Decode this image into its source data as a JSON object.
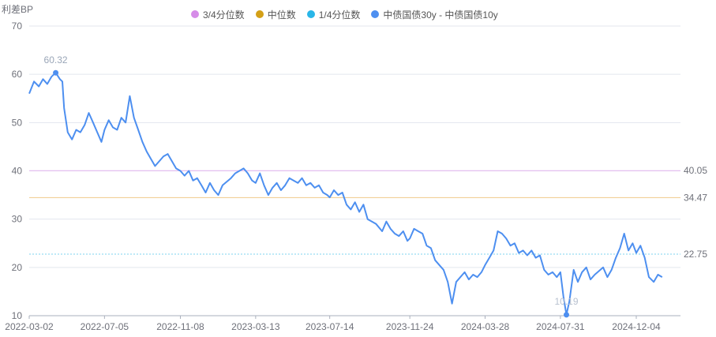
{
  "chart_data": {
    "type": "line",
    "title": "",
    "ylabel": "利差BP",
    "xlabel": "",
    "ylim": [
      10,
      70
    ],
    "yticks": [
      "10",
      "20",
      "30",
      "40",
      "50",
      "60",
      "70"
    ],
    "x_ticks": [
      "2022-03-02",
      "2022-07-05",
      "2022-11-08",
      "2023-03-13",
      "2023-07-14",
      "2023-11-24",
      "2024-03-28",
      "2024-07-31",
      "2024-12-04"
    ],
    "legend_position": "top",
    "grid": true,
    "legend": [
      {
        "name": "3/4分位数",
        "color": "#d68ce8"
      },
      {
        "name": "中位数",
        "color": "#d4a017"
      },
      {
        "name": "1/4分位数",
        "color": "#29b6e8"
      },
      {
        "name": "中债国债30y - 中债国债10y",
        "color": "#4d8ff0"
      }
    ],
    "reference_lines": [
      {
        "name": "3/4分位数",
        "value": 40.05,
        "label": "40.05",
        "color": "#e2b4ef"
      },
      {
        "name": "中位数",
        "value": 34.47,
        "label": "34.47",
        "color": "#f0c98a"
      },
      {
        "name": "1/4分位数",
        "value": 22.75,
        "label": "22.75",
        "color": "#7fd3ef"
      }
    ],
    "annotations": [
      {
        "label": "60.32",
        "date": "2022-04-15",
        "value": 60.32
      },
      {
        "label": "10.19",
        "date": "2024-08-10",
        "value": 10.19
      }
    ],
    "series": [
      {
        "name": "中债国债30y - 中债国债10y",
        "color": "#4d8ff0",
        "points": [
          [
            "2022-03-02",
            56.0
          ],
          [
            "2022-03-10",
            58.5
          ],
          [
            "2022-03-18",
            57.5
          ],
          [
            "2022-03-25",
            59.0
          ],
          [
            "2022-04-01",
            58.0
          ],
          [
            "2022-04-08",
            59.5
          ],
          [
            "2022-04-15",
            60.32
          ],
          [
            "2022-04-22",
            59.0
          ],
          [
            "2022-04-26",
            58.5
          ],
          [
            "2022-04-29",
            53.0
          ],
          [
            "2022-05-05",
            48.0
          ],
          [
            "2022-05-12",
            46.5
          ],
          [
            "2022-05-19",
            48.5
          ],
          [
            "2022-05-26",
            48.0
          ],
          [
            "2022-06-02",
            49.5
          ],
          [
            "2022-06-09",
            52.0
          ],
          [
            "2022-06-16",
            50.0
          ],
          [
            "2022-06-23",
            48.0
          ],
          [
            "2022-06-30",
            46.0
          ],
          [
            "2022-07-05",
            48.5
          ],
          [
            "2022-07-12",
            50.5
          ],
          [
            "2022-07-19",
            49.0
          ],
          [
            "2022-07-26",
            48.5
          ],
          [
            "2022-08-02",
            51.0
          ],
          [
            "2022-08-09",
            50.0
          ],
          [
            "2022-08-16",
            55.5
          ],
          [
            "2022-08-23",
            51.0
          ],
          [
            "2022-08-30",
            48.5
          ],
          [
            "2022-09-06",
            46.0
          ],
          [
            "2022-09-13",
            44.0
          ],
          [
            "2022-09-20",
            42.5
          ],
          [
            "2022-09-27",
            41.0
          ],
          [
            "2022-10-11",
            43.0
          ],
          [
            "2022-10-18",
            43.5
          ],
          [
            "2022-10-25",
            42.0
          ],
          [
            "2022-11-01",
            40.5
          ],
          [
            "2022-11-08",
            40.0
          ],
          [
            "2022-11-15",
            39.0
          ],
          [
            "2022-11-22",
            40.0
          ],
          [
            "2022-11-29",
            38.0
          ],
          [
            "2022-12-06",
            38.5
          ],
          [
            "2022-12-13",
            37.0
          ],
          [
            "2022-12-20",
            35.5
          ],
          [
            "2022-12-27",
            37.5
          ],
          [
            "2023-01-03",
            36.0
          ],
          [
            "2023-01-10",
            35.0
          ],
          [
            "2023-01-17",
            37.0
          ],
          [
            "2023-01-31",
            38.5
          ],
          [
            "2023-02-07",
            39.5
          ],
          [
            "2023-02-14",
            40.0
          ],
          [
            "2023-02-21",
            40.5
          ],
          [
            "2023-02-28",
            39.5
          ],
          [
            "2023-03-07",
            38.0
          ],
          [
            "2023-03-13",
            37.5
          ],
          [
            "2023-03-20",
            39.5
          ],
          [
            "2023-03-27",
            37.0
          ],
          [
            "2023-04-03",
            35.0
          ],
          [
            "2023-04-10",
            36.5
          ],
          [
            "2023-04-17",
            37.5
          ],
          [
            "2023-04-24",
            36.0
          ],
          [
            "2023-05-01",
            37.0
          ],
          [
            "2023-05-08",
            38.5
          ],
          [
            "2023-05-15",
            38.0
          ],
          [
            "2023-05-22",
            37.5
          ],
          [
            "2023-05-29",
            38.5
          ],
          [
            "2023-06-05",
            37.0
          ],
          [
            "2023-06-12",
            37.5
          ],
          [
            "2023-06-19",
            36.5
          ],
          [
            "2023-06-26",
            37.0
          ],
          [
            "2023-07-03",
            35.5
          ],
          [
            "2023-07-10",
            35.0
          ],
          [
            "2023-07-14",
            34.5
          ],
          [
            "2023-07-21",
            36.0
          ],
          [
            "2023-07-28",
            35.0
          ],
          [
            "2023-08-04",
            35.5
          ],
          [
            "2023-08-11",
            33.0
          ],
          [
            "2023-08-18",
            32.0
          ],
          [
            "2023-08-25",
            33.5
          ],
          [
            "2023-09-01",
            31.5
          ],
          [
            "2023-09-08",
            33.0
          ],
          [
            "2023-09-15",
            30.0
          ],
          [
            "2023-09-22",
            29.5
          ],
          [
            "2023-09-29",
            29.0
          ],
          [
            "2023-10-09",
            27.5
          ],
          [
            "2023-10-16",
            29.5
          ],
          [
            "2023-10-23",
            28.0
          ],
          [
            "2023-10-30",
            27.0
          ],
          [
            "2023-11-06",
            26.5
          ],
          [
            "2023-11-13",
            27.5
          ],
          [
            "2023-11-20",
            25.5
          ],
          [
            "2023-11-24",
            26.0
          ],
          [
            "2023-12-01",
            28.0
          ],
          [
            "2023-12-08",
            27.5
          ],
          [
            "2023-12-15",
            27.0
          ],
          [
            "2023-12-22",
            24.5
          ],
          [
            "2023-12-29",
            24.0
          ],
          [
            "2024-01-05",
            21.5
          ],
          [
            "2024-01-12",
            20.5
          ],
          [
            "2024-01-19",
            19.5
          ],
          [
            "2024-01-26",
            17.0
          ],
          [
            "2024-02-02",
            12.5
          ],
          [
            "2024-02-09",
            17.0
          ],
          [
            "2024-02-23",
            19.0
          ],
          [
            "2024-03-01",
            17.5
          ],
          [
            "2024-03-08",
            18.5
          ],
          [
            "2024-03-15",
            18.0
          ],
          [
            "2024-03-22",
            19.0
          ],
          [
            "2024-03-28",
            20.5
          ],
          [
            "2024-04-04",
            22.0
          ],
          [
            "2024-04-11",
            23.5
          ],
          [
            "2024-04-18",
            27.5
          ],
          [
            "2024-04-25",
            27.0
          ],
          [
            "2024-05-02",
            26.0
          ],
          [
            "2024-05-09",
            24.5
          ],
          [
            "2024-05-16",
            25.0
          ],
          [
            "2024-05-23",
            23.0
          ],
          [
            "2024-05-30",
            23.5
          ],
          [
            "2024-06-06",
            22.5
          ],
          [
            "2024-06-13",
            23.5
          ],
          [
            "2024-06-20",
            22.0
          ],
          [
            "2024-06-27",
            22.5
          ],
          [
            "2024-07-04",
            19.5
          ],
          [
            "2024-07-11",
            18.5
          ],
          [
            "2024-07-18",
            19.0
          ],
          [
            "2024-07-25",
            18.0
          ],
          [
            "2024-07-31",
            19.0
          ],
          [
            "2024-08-05",
            14.0
          ],
          [
            "2024-08-10",
            10.19
          ],
          [
            "2024-08-15",
            13.0
          ],
          [
            "2024-08-22",
            19.5
          ],
          [
            "2024-08-29",
            17.0
          ],
          [
            "2024-09-05",
            19.0
          ],
          [
            "2024-09-12",
            20.0
          ],
          [
            "2024-09-19",
            17.5
          ],
          [
            "2024-09-26",
            18.5
          ],
          [
            "2024-10-10",
            20.0
          ],
          [
            "2024-10-17",
            18.0
          ],
          [
            "2024-10-24",
            19.5
          ],
          [
            "2024-10-31",
            22.0
          ],
          [
            "2024-11-07",
            24.0
          ],
          [
            "2024-11-14",
            27.0
          ],
          [
            "2024-11-21",
            23.5
          ],
          [
            "2024-11-28",
            25.0
          ],
          [
            "2024-12-04",
            23.0
          ],
          [
            "2024-12-11",
            24.5
          ],
          [
            "2024-12-18",
            22.0
          ],
          [
            "2024-12-25",
            18.0
          ],
          [
            "2025-01-02",
            17.0
          ],
          [
            "2025-01-09",
            18.5
          ],
          [
            "2025-01-16",
            18.0
          ]
        ]
      }
    ]
  }
}
